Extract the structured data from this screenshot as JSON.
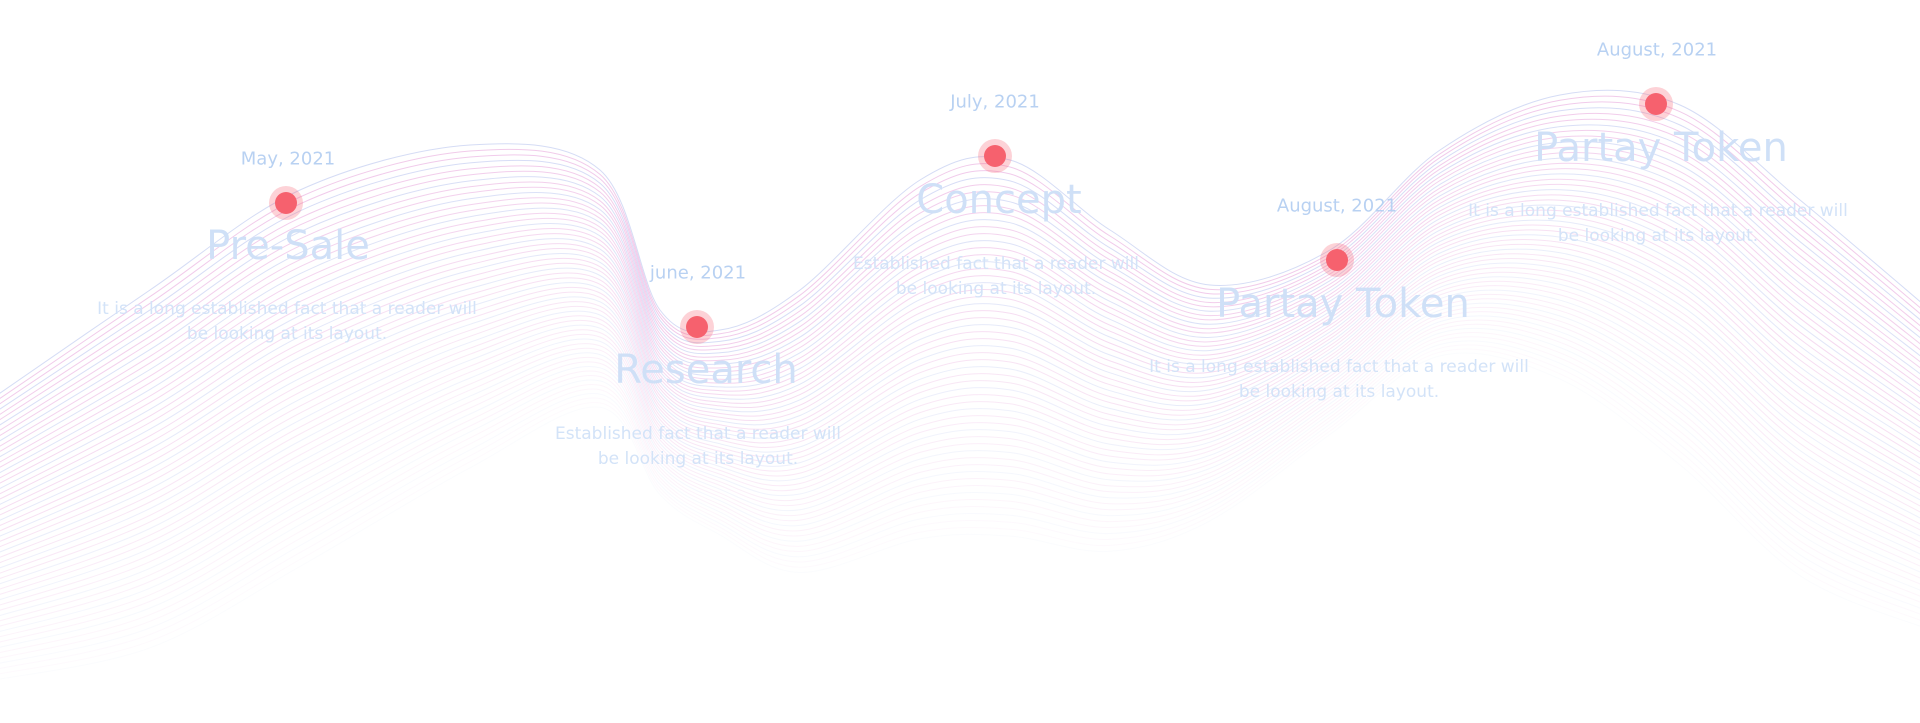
{
  "timeline": {
    "items": [
      {
        "date": "May, 2021",
        "title": "Pre-Sale",
        "description": "It is a long established fact that a reader will be looking at its layout."
      },
      {
        "date": "june, 2021",
        "title": "Research",
        "description": "Established fact that a reader will be looking at its layout."
      },
      {
        "date": "July, 2021",
        "title": "Concept",
        "description": "Established fact that a reader will be looking at its layout."
      },
      {
        "date": "August, 2021",
        "title": "Partay Token",
        "description": "It is a long established fact that a reader will be looking at its layout."
      },
      {
        "date": "August, 2021",
        "title": "Partay Token",
        "description": "It is a long established fact that a reader will be looking at its layout."
      }
    ]
  },
  "colors": {
    "dot": "#f6616e",
    "dot_halo": "#f75f6e",
    "text": "#c9dcf6",
    "wave_pink": "#e7a6dc",
    "wave_blue": "#b9c4ef"
  }
}
